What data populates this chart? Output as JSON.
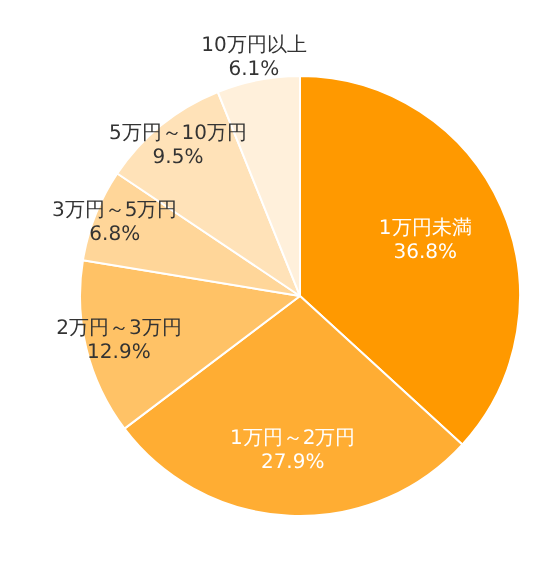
{
  "chart_data": {
    "type": "pie",
    "categories": [
      "1万円未満",
      "1万円～2万円",
      "2万円～3万円",
      "3万円～5万円",
      "5万円～10万円",
      "10万円以上"
    ],
    "values": [
      36.8,
      27.9,
      12.9,
      6.8,
      9.5,
      6.1
    ],
    "colors": [
      "#ff9900",
      "#ffad33",
      "#ffc266",
      "#ffd699",
      "#ffe2b8",
      "#fff0db"
    ],
    "value_labels": [
      "36.8%",
      "27.9%",
      "12.9%",
      "6.8%",
      "9.5%",
      "6.1%"
    ]
  }
}
